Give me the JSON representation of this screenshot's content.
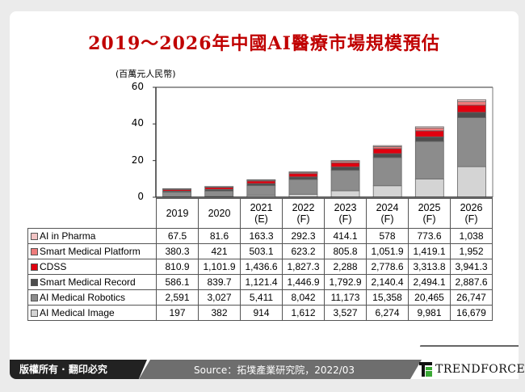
{
  "title": "2019～2026年中國AI醫療市場規模預估",
  "footer": {
    "copyright": "版權所有 · 翻印必究",
    "source": "Source：拓墣產業研究院，2022/03",
    "brand": "TRENDFORCE"
  },
  "chart_data": {
    "type": "bar",
    "stacked": true,
    "ylabel": "(百萬元人民幣)",
    "ylim": [
      0,
      60
    ],
    "yticks": [
      "0",
      "20",
      "40",
      "60"
    ],
    "categories": [
      [
        "2019",
        ""
      ],
      [
        "2020",
        ""
      ],
      [
        "2021",
        "(E)"
      ],
      [
        "2022",
        "(F)"
      ],
      [
        "2023",
        "(F)"
      ],
      [
        "2024",
        "(F)"
      ],
      [
        "2025",
        "(F)"
      ],
      [
        "2026",
        "(F)"
      ]
    ],
    "series": [
      {
        "name": "AI in Pharma",
        "color": "#f2c4c4",
        "labels": [
          "67.5",
          "81.6",
          "163.3",
          "292.3",
          "414.1",
          "578",
          "773.6",
          "1,038"
        ]
      },
      {
        "name": "Smart Medical Platform",
        "color": "#ee7b7b",
        "labels": [
          "380.3",
          "421",
          "503.1",
          "623.2",
          "805.8",
          "1,051.9",
          "1,419.1",
          "1,952"
        ]
      },
      {
        "name": "CDSS",
        "color": "#e0000f",
        "labels": [
          "810.9",
          "1,101.9",
          "1,436.6",
          "1,827.3",
          "2,288",
          "2,778.6",
          "3,313.8",
          "3,941.3"
        ]
      },
      {
        "name": "Smart Medical Record",
        "color": "#4d4d4d",
        "labels": [
          "586.1",
          "839.7",
          "1,121.4",
          "1,446.9",
          "1,792.9",
          "2,140.4",
          "2,494.1",
          "2,887.6"
        ]
      },
      {
        "name": "AI Medical Robotics",
        "color": "#8c8c8c",
        "labels": [
          "2,591",
          "3,027",
          "5,411",
          "8,042",
          "11,173",
          "15,358",
          "20,465",
          "26,747"
        ]
      },
      {
        "name": "AI Medical Image",
        "color": "#d4d4d4",
        "labels": [
          "197",
          "382",
          "914",
          "1,612",
          "3,527",
          "6,274",
          "9,981",
          "16,679"
        ]
      }
    ],
    "stack_order_bottom_to_top": [
      "AI Medical Image",
      "AI Medical Robotics",
      "Smart Medical Record",
      "CDSS",
      "Smart Medical Platform",
      "AI in Pharma"
    ],
    "legend": "table-left",
    "grid": false
  }
}
